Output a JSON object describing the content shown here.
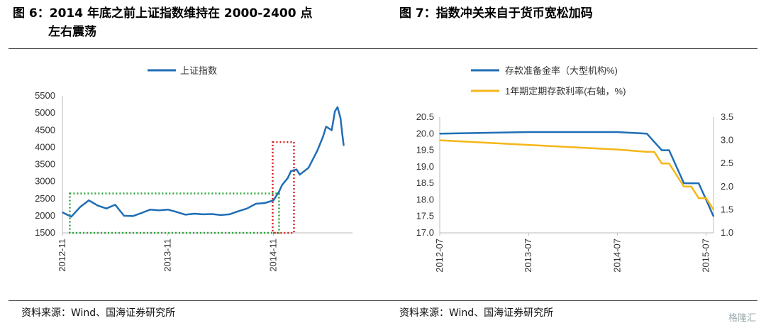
{
  "left_figure": {
    "title_line1": "图 6：2014 年底之前上证指数维持在 2000-2400 点",
    "title_line2": "左右震荡",
    "source": "资料来源：Wind、国海证券研究所"
  },
  "right_figure": {
    "title": "图 7：指数冲关来自于货币宽松加码",
    "source": "资料来源：Wind、国海证券研究所"
  },
  "watermark": "格隆汇",
  "chart_data": [
    {
      "type": "line",
      "series": [
        {
          "name": "上证指数",
          "color": "#1f6eb5",
          "x": [
            "2012-11",
            "2012-12",
            "2013-01",
            "2013-02",
            "2013-03",
            "2013-04",
            "2013-05",
            "2013-06",
            "2013-07",
            "2013-08",
            "2013-09",
            "2013-10",
            "2013-11",
            "2013-12",
            "2014-01",
            "2014-02",
            "2014-03",
            "2014-04",
            "2014-05",
            "2014-06",
            "2014-07",
            "2014-08",
            "2014-09",
            "2014-10",
            "2014-11",
            "2014-11-20",
            "2014-12",
            "2014-12-20",
            "2015-01",
            "2015-01-20",
            "2015-02",
            "2015-03",
            "2015-04",
            "2015-04-20",
            "2015-05",
            "2015-05-20",
            "2015-06",
            "2015-06-10",
            "2015-06-20",
            "2015-06-26",
            "2015-07"
          ],
          "values": [
            2100,
            1970,
            2250,
            2450,
            2300,
            2210,
            2320,
            2000,
            1990,
            2080,
            2180,
            2160,
            2180,
            2110,
            2030,
            2060,
            2040,
            2050,
            2020,
            2040,
            2130,
            2210,
            2350,
            2370,
            2450,
            2700,
            2900,
            3100,
            3300,
            3350,
            3200,
            3400,
            3900,
            4300,
            4600,
            4500,
            5050,
            5170,
            4850,
            4400,
            4050
          ]
        }
      ],
      "ylim": [
        1500,
        5500
      ],
      "yticks": [
        "1500",
        "2000",
        "2500",
        "3000",
        "3500",
        "4000",
        "4500",
        "5000",
        "5500"
      ],
      "xticks": [
        "2012-11",
        "2013-11",
        "2014-11"
      ],
      "legend": "top"
    },
    {
      "type": "line",
      "series": [
        {
          "name": "存款准备金率（大型机构%)",
          "axis": "left",
          "color": "#1f6eb5",
          "x": [
            "2012-07",
            "2013-07",
            "2014-07",
            "2014-11",
            "2015-01",
            "2015-02",
            "2015-03",
            "2015-04",
            "2015-05",
            "2015-06",
            "2015-07",
            "2015-08"
          ],
          "values": [
            20.0,
            20.05,
            20.05,
            20.0,
            19.5,
            19.5,
            19.0,
            18.5,
            18.5,
            18.5,
            18.0,
            17.5
          ]
        },
        {
          "name": "1年期定期存款利率(右轴，%)",
          "axis": "right",
          "color": "#f5b617",
          "x": [
            "2012-07",
            "2013-07",
            "2014-07",
            "2014-11",
            "2014-12",
            "2015-01",
            "2015-02",
            "2015-03",
            "2015-04",
            "2015-05",
            "2015-06",
            "2015-07",
            "2015-08"
          ],
          "values": [
            3.0,
            2.9,
            2.8,
            2.75,
            2.75,
            2.5,
            2.5,
            2.25,
            2.0,
            2.0,
            1.75,
            1.75,
            1.5
          ]
        }
      ],
      "ylim_left": [
        17.0,
        20.5
      ],
      "yticks_left": [
        "17.0",
        "17.5",
        "18.0",
        "18.5",
        "19.0",
        "19.5",
        "20.0",
        "20.5"
      ],
      "ylim_right": [
        1.0,
        3.5
      ],
      "yticks_right": [
        "1.0",
        "1.5",
        "2.0",
        "2.5",
        "3.0",
        "3.5"
      ],
      "xticks": [
        "2012-07",
        "2013-07",
        "2014-07",
        "2015-07"
      ],
      "legend": "top"
    }
  ]
}
